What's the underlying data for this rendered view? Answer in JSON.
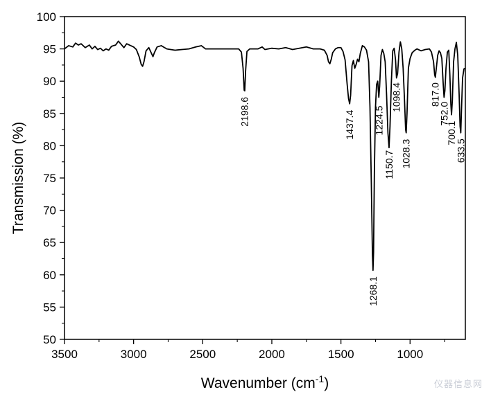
{
  "chart_data": {
    "type": "line",
    "title": "",
    "xlabel": "Wavenumber (cm",
    "xlabel_sup": "-1",
    "xlabel_end": ")",
    "ylabel": "Transmission (%)",
    "xlim": [
      3500,
      600
    ],
    "ylim": [
      50,
      100
    ],
    "x_reversed": true,
    "grid": false,
    "x_ticks": [
      3500,
      3000,
      2500,
      2000,
      1500,
      1000
    ],
    "y_ticks": [
      50,
      55,
      60,
      65,
      70,
      75,
      80,
      85,
      90,
      95,
      100
    ],
    "series": [
      {
        "color": "#000000",
        "points": [
          [
            3500,
            95.0
          ],
          [
            3470,
            95.5
          ],
          [
            3440,
            95.3
          ],
          [
            3420,
            95.9
          ],
          [
            3400,
            95.6
          ],
          [
            3380,
            95.8
          ],
          [
            3350,
            95.2
          ],
          [
            3320,
            95.6
          ],
          [
            3300,
            95.0
          ],
          [
            3280,
            95.4
          ],
          [
            3260,
            94.9
          ],
          [
            3240,
            95.1
          ],
          [
            3220,
            94.7
          ],
          [
            3200,
            95.0
          ],
          [
            3180,
            94.8
          ],
          [
            3160,
            95.4
          ],
          [
            3130,
            95.6
          ],
          [
            3110,
            96.2
          ],
          [
            3090,
            95.7
          ],
          [
            3070,
            95.2
          ],
          [
            3050,
            95.8
          ],
          [
            3030,
            95.6
          ],
          [
            3000,
            95.3
          ],
          [
            2980,
            94.9
          ],
          [
            2960,
            93.8
          ],
          [
            2945,
            92.6
          ],
          [
            2935,
            92.3
          ],
          [
            2925,
            93.0
          ],
          [
            2910,
            94.7
          ],
          [
            2890,
            95.2
          ],
          [
            2875,
            94.5
          ],
          [
            2860,
            93.8
          ],
          [
            2850,
            94.4
          ],
          [
            2830,
            95.3
          ],
          [
            2800,
            95.5
          ],
          [
            2760,
            95.0
          ],
          [
            2700,
            94.8
          ],
          [
            2650,
            94.9
          ],
          [
            2600,
            95.0
          ],
          [
            2550,
            95.3
          ],
          [
            2510,
            95.5
          ],
          [
            2480,
            95.0
          ],
          [
            2400,
            95.0
          ],
          [
            2300,
            95.0
          ],
          [
            2240,
            95.0
          ],
          [
            2220,
            94.5
          ],
          [
            2208,
            92.0
          ],
          [
            2200,
            88.6
          ],
          [
            2196,
            88.5
          ],
          [
            2190,
            91.5
          ],
          [
            2180,
            94.6
          ],
          [
            2160,
            95.0
          ],
          [
            2100,
            95.0
          ],
          [
            2070,
            95.3
          ],
          [
            2050,
            94.9
          ],
          [
            2000,
            95.1
          ],
          [
            1950,
            95.0
          ],
          [
            1900,
            95.2
          ],
          [
            1850,
            94.9
          ],
          [
            1800,
            95.1
          ],
          [
            1750,
            95.3
          ],
          [
            1700,
            95.0
          ],
          [
            1650,
            95.0
          ],
          [
            1620,
            94.8
          ],
          [
            1600,
            94.0
          ],
          [
            1590,
            93.0
          ],
          [
            1580,
            92.7
          ],
          [
            1570,
            93.4
          ],
          [
            1560,
            94.4
          ],
          [
            1540,
            95.0
          ],
          [
            1520,
            95.2
          ],
          [
            1500,
            95.2
          ],
          [
            1485,
            94.6
          ],
          [
            1470,
            93.3
          ],
          [
            1455,
            89.5
          ],
          [
            1445,
            87.3
          ],
          [
            1437,
            86.5
          ],
          [
            1430,
            87.8
          ],
          [
            1420,
            92.4
          ],
          [
            1410,
            93.2
          ],
          [
            1400,
            92.0
          ],
          [
            1390,
            92.6
          ],
          [
            1380,
            93.4
          ],
          [
            1370,
            93.0
          ],
          [
            1360,
            94.3
          ],
          [
            1345,
            95.5
          ],
          [
            1330,
            95.3
          ],
          [
            1315,
            94.8
          ],
          [
            1300,
            93.0
          ],
          [
            1290,
            86.0
          ],
          [
            1280,
            74.0
          ],
          [
            1272,
            63.0
          ],
          [
            1268,
            60.7
          ],
          [
            1264,
            63.5
          ],
          [
            1258,
            76.0
          ],
          [
            1250,
            86.0
          ],
          [
            1242,
            89.5
          ],
          [
            1234,
            90.0
          ],
          [
            1226,
            87.5
          ],
          [
            1220,
            89.2
          ],
          [
            1210,
            94.0
          ],
          [
            1200,
            94.9
          ],
          [
            1190,
            94.3
          ],
          [
            1180,
            93.0
          ],
          [
            1170,
            88.0
          ],
          [
            1160,
            82.0
          ],
          [
            1152,
            79.7
          ],
          [
            1145,
            83.0
          ],
          [
            1135,
            90.0
          ],
          [
            1125,
            94.7
          ],
          [
            1115,
            95.1
          ],
          [
            1105,
            93.3
          ],
          [
            1098,
            90.5
          ],
          [
            1090,
            91.2
          ],
          [
            1080,
            94.5
          ],
          [
            1070,
            96.1
          ],
          [
            1060,
            95.0
          ],
          [
            1050,
            92.0
          ],
          [
            1040,
            87.0
          ],
          [
            1032,
            82.5
          ],
          [
            1028,
            82.0
          ],
          [
            1022,
            85.0
          ],
          [
            1012,
            92.0
          ],
          [
            1000,
            93.5
          ],
          [
            985,
            94.4
          ],
          [
            965,
            94.8
          ],
          [
            950,
            95.0
          ],
          [
            920,
            94.7
          ],
          [
            890,
            94.9
          ],
          [
            860,
            95.0
          ],
          [
            845,
            94.5
          ],
          [
            830,
            93.0
          ],
          [
            822,
            91.0
          ],
          [
            817,
            90.6
          ],
          [
            810,
            92.0
          ],
          [
            800,
            94.0
          ],
          [
            790,
            94.7
          ],
          [
            780,
            94.4
          ],
          [
            770,
            93.5
          ],
          [
            760,
            89.5
          ],
          [
            754,
            87.5
          ],
          [
            748,
            88.5
          ],
          [
            740,
            92.0
          ],
          [
            730,
            94.5
          ],
          [
            720,
            94.8
          ],
          [
            712,
            91.0
          ],
          [
            705,
            86.5
          ],
          [
            700,
            84.8
          ],
          [
            694,
            87.0
          ],
          [
            685,
            93.0
          ],
          [
            675,
            95.0
          ],
          [
            665,
            96.0
          ],
          [
            655,
            94.0
          ],
          [
            645,
            88.0
          ],
          [
            638,
            83.0
          ],
          [
            633,
            82.0
          ],
          [
            628,
            85.5
          ],
          [
            620,
            90.5
          ],
          [
            610,
            91.9
          ],
          [
            600,
            92.0
          ]
        ]
      }
    ],
    "annotations": [
      {
        "text": "2198.6",
        "x": 2198.6
      },
      {
        "text": "1437.4",
        "x": 1437.4
      },
      {
        "text": "1224.5",
        "x": 1224.5
      },
      {
        "text": "1268.1",
        "x": 1268.1
      },
      {
        "text": "1150.7",
        "x": 1150.7
      },
      {
        "text": "1098.4",
        "x": 1098.4
      },
      {
        "text": "1028.3",
        "x": 1028.3
      },
      {
        "text": "817.0",
        "x": 817.0
      },
      {
        "text": "752.0",
        "x": 752.0
      },
      {
        "text": "700.1",
        "x": 700.1
      },
      {
        "text": "633.5",
        "x": 633.5
      }
    ]
  },
  "watermark": "仪器信息网"
}
